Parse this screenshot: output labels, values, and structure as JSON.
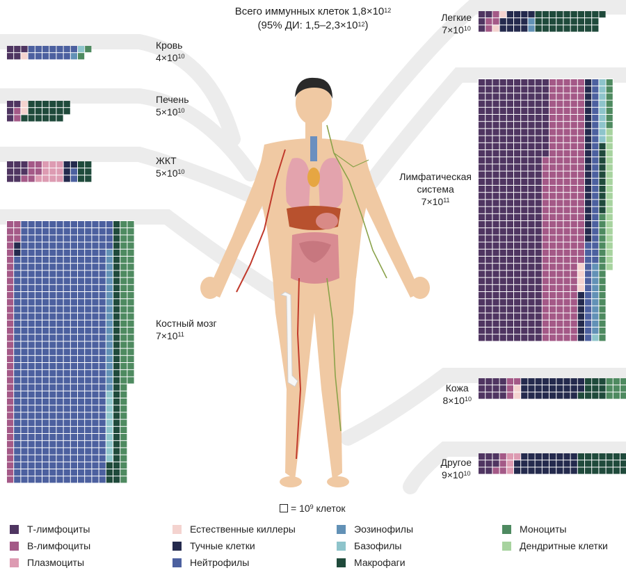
{
  "title": {
    "line1_text": "Всего иммунных клеток 1,8×10",
    "line1_exp": "12",
    "line2_text": "(95% ДИ: 1,5–2,3×10",
    "line2_exp": "12",
    "line2_end": ")"
  },
  "scale_note": {
    "text": "= 10",
    "exp": "9",
    "suffix": " клеток"
  },
  "colors": {
    "t_cells": "#4f3561",
    "b_cells": "#a45987",
    "plasma": "#dd9bb2",
    "nk": "#f4d3cf",
    "mast": "#242a4d",
    "neutro": "#4c609f",
    "eosino": "#6291b6",
    "baso": "#8ec4cb",
    "macro": "#1f4a3b",
    "mono": "#4e8a60",
    "dendritic": "#a7d39f",
    "band": "#ececec",
    "grid_line": "#ffffff"
  },
  "organs": [
    {
      "key": "blood",
      "name": "Кровь",
      "mant": "4×10",
      "exp": "10",
      "counts": [
        5,
        0,
        0,
        1,
        0,
        13,
        1,
        1,
        0,
        2,
        0
      ]
    },
    {
      "key": "liver",
      "name": "Печень",
      "mant": "5×10",
      "exp": "10",
      "counts": [
        4,
        2,
        0,
        2,
        0,
        0,
        0,
        0,
        18,
        0,
        0
      ]
    },
    {
      "key": "gi",
      "name": "ЖКТ",
      "mant": "5×10",
      "exp": "10",
      "counts": [
        8,
        6,
        10,
        0,
        4,
        2,
        0,
        0,
        6,
        0,
        0
      ]
    },
    {
      "key": "marrow",
      "name": "Костный мозг",
      "mant": "7×10",
      "exp": "11",
      "counts": [
        0,
        40,
        0,
        0,
        2,
        480,
        20,
        10,
        40,
        60,
        0
      ]
    },
    {
      "key": "lungs",
      "name": "Легкие",
      "mant": "7×10",
      "exp": "10",
      "counts": [
        4,
        4,
        0,
        2,
        12,
        0,
        2,
        0,
        28,
        0,
        0
      ]
    },
    {
      "key": "lymph",
      "name": "Лимфатическая\nсистема",
      "mant": "7×10",
      "exp": "11",
      "counts": [
        344,
        200,
        0,
        4,
        30,
        40,
        10,
        10,
        10,
        25,
        20
      ]
    },
    {
      "key": "skin",
      "name": "Кожа",
      "mant": "8×10",
      "exp": "10",
      "counts": [
        12,
        4,
        0,
        2,
        26,
        0,
        0,
        0,
        10,
        10,
        6
      ]
    },
    {
      "key": "other",
      "name": "Другое",
      "mant": "9×10",
      "exp": "10",
      "counts": [
        8,
        4,
        4,
        0,
        26,
        0,
        0,
        0,
        36,
        0,
        0
      ]
    }
  ],
  "legend": [
    {
      "key": "t_cells",
      "label": "Т-лимфоциты"
    },
    {
      "key": "b_cells",
      "label": "В-лимфоциты"
    },
    {
      "key": "plasma",
      "label": "Плазмоциты"
    },
    {
      "key": "nk",
      "label": "Естественные киллеры"
    },
    {
      "key": "mast",
      "label": "Тучные клетки"
    },
    {
      "key": "neutro",
      "label": "Нейтрофилы"
    },
    {
      "key": "eosino",
      "label": "Эозинофилы"
    },
    {
      "key": "baso",
      "label": "Базофилы"
    },
    {
      "key": "macro",
      "label": "Макрофаги"
    },
    {
      "key": "mono",
      "label": "Моноциты"
    },
    {
      "key": "dendritic",
      "label": "Дендритные клетки"
    }
  ],
  "figure": {
    "body_icon": "human-body-anatomy-illustration"
  }
}
